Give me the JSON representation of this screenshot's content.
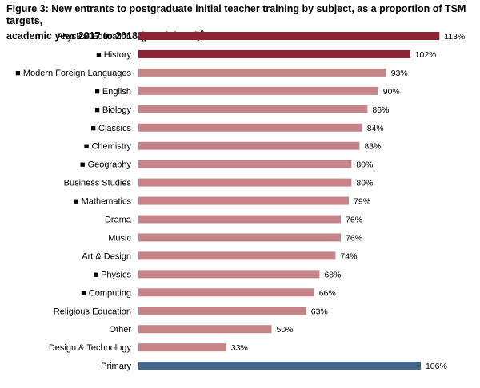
{
  "figure": {
    "title_line1": "Figure 3: New entrants to postgraduate initial teacher training by subject, as a proportion of TSM targets,",
    "title_line2": "academic year 2017 to 2018 (provisional)",
    "title_footnote": "9"
  },
  "chart_data": {
    "type": "bar",
    "orientation": "horizontal",
    "unit": "%",
    "categories": [
      "Physical Education",
      "History",
      "Modern Foreign Languages",
      "English",
      "Biology",
      "Classics",
      "Chemistry",
      "Geography",
      "Business Studies",
      "Mathematics",
      "Drama",
      "Music",
      "Art & Design",
      "Physics",
      "Computing",
      "Religious Education",
      "Other",
      "Design & Technology",
      "Primary"
    ],
    "marked": [
      false,
      true,
      true,
      true,
      true,
      true,
      true,
      true,
      false,
      true,
      false,
      false,
      false,
      true,
      true,
      false,
      false,
      false,
      false
    ],
    "marker_symbol": "■",
    "values": [
      113,
      102,
      93,
      90,
      86,
      84,
      83,
      80,
      80,
      79,
      76,
      76,
      74,
      68,
      66,
      63,
      50,
      33,
      106
    ],
    "value_labels": [
      "113%",
      "102%",
      "93%",
      "90%",
      "86%",
      "84%",
      "83%",
      "80%",
      "80%",
      "79%",
      "76%",
      "76%",
      "74%",
      "68%",
      "66%",
      "63%",
      "50%",
      "33%",
      "106%"
    ],
    "bar_colors": [
      "#8b2332",
      "#8b2332",
      "#c48488",
      "#c48488",
      "#c48488",
      "#c48488",
      "#c48488",
      "#c48488",
      "#c48488",
      "#c48488",
      "#c48488",
      "#c48488",
      "#c48488",
      "#c48488",
      "#c48488",
      "#c48488",
      "#c48488",
      "#c48488",
      "#41688a"
    ],
    "xlim": [
      0,
      120
    ],
    "grid": false,
    "legend": "none"
  }
}
